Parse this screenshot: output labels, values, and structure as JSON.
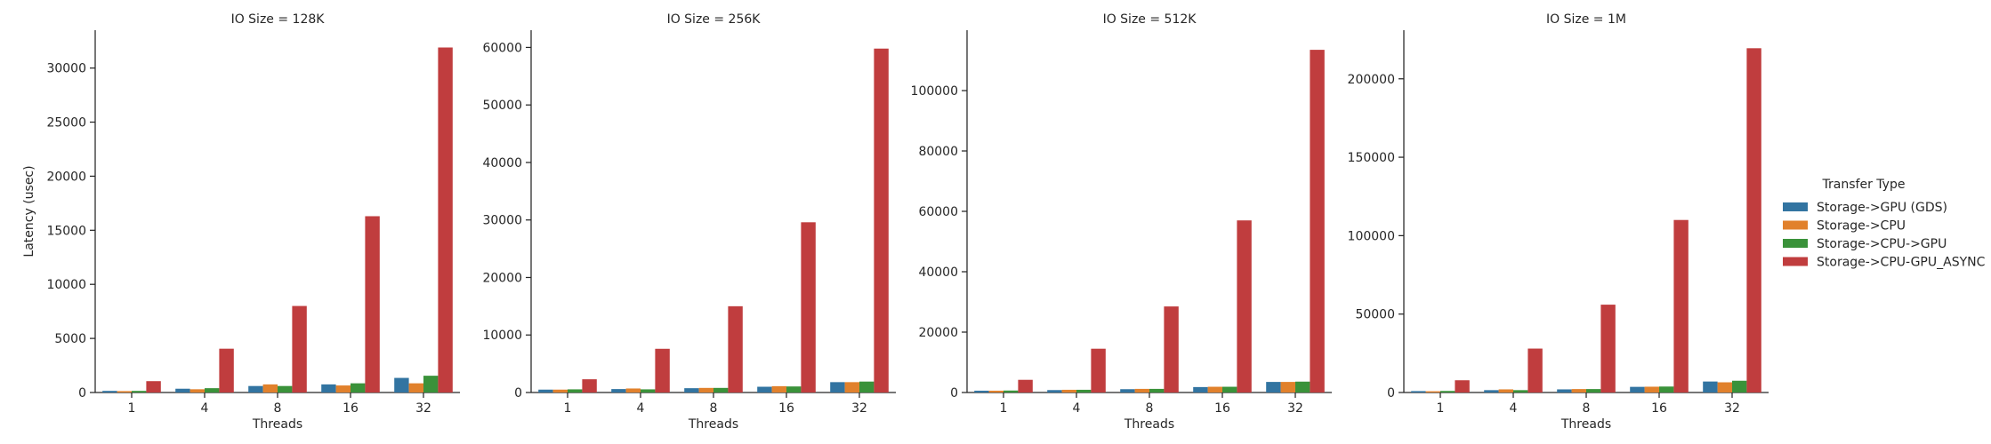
{
  "chart_data": {
    "type": "bar",
    "ylabel": "Latency (usec)",
    "xlabel": "Threads",
    "categories": [
      "1",
      "4",
      "8",
      "16",
      "32"
    ],
    "legend": {
      "title": "Transfer Type",
      "placement": "right",
      "colors": [
        "#3274a1",
        "#e1812c",
        "#3a923a",
        "#c03d3e"
      ]
    },
    "series_names": [
      "Storage->GPU (GDS)",
      "Storage->CPU",
      "Storage->CPU->GPU",
      "Storage->CPU-GPU_ASYNC"
    ],
    "grid": false,
    "panels": [
      {
        "title": "IO Size = 128K",
        "ylim": [
          0,
          33500
        ],
        "yticks": [
          0,
          5000,
          10000,
          15000,
          20000,
          25000,
          30000
        ],
        "series": [
          {
            "name": "Storage->GPU (GDS)",
            "values": [
              150,
              350,
              600,
              750,
              1350
            ]
          },
          {
            "name": "Storage->CPU",
            "values": [
              130,
              300,
              750,
              650,
              850
            ]
          },
          {
            "name": "Storage->CPU->GPU",
            "values": [
              150,
              400,
              600,
              850,
              1550
            ]
          },
          {
            "name": "Storage->CPU-GPU_ASYNC",
            "values": [
              1050,
              4050,
              8000,
              16300,
              31900
            ]
          }
        ]
      },
      {
        "title": "IO Size = 256K",
        "ylim": [
          0,
          63000
        ],
        "yticks": [
          0,
          10000,
          20000,
          30000,
          40000,
          50000,
          60000
        ],
        "series": [
          {
            "name": "Storage->GPU (GDS)",
            "values": [
              500,
              600,
              750,
              1000,
              1800
            ]
          },
          {
            "name": "Storage->CPU",
            "values": [
              500,
              700,
              800,
              1100,
              1800
            ]
          },
          {
            "name": "Storage->CPU->GPU",
            "values": [
              550,
              550,
              800,
              1050,
              1900
            ]
          },
          {
            "name": "Storage->CPU-GPU_ASYNC",
            "values": [
              2300,
              7600,
              15000,
              29600,
              59800
            ]
          }
        ]
      },
      {
        "title": "IO Size = 512K",
        "ylim": [
          0,
          120000
        ],
        "yticks": [
          0,
          20000,
          40000,
          60000,
          80000,
          100000
        ],
        "series": [
          {
            "name": "Storage->GPU (GDS)",
            "values": [
              600,
              800,
              1100,
              1800,
              3500
            ]
          },
          {
            "name": "Storage->CPU",
            "values": [
              600,
              900,
              1200,
              1900,
              3500
            ]
          },
          {
            "name": "Storage->CPU->GPU",
            "values": [
              650,
              900,
              1200,
              1900,
              3600
            ]
          },
          {
            "name": "Storage->CPU-GPU_ASYNC",
            "values": [
              4200,
              14500,
              28500,
              57000,
              113500
            ]
          }
        ]
      },
      {
        "title": "IO Size = 1M",
        "ylim": [
          0,
          231000
        ],
        "yticks": [
          0,
          50000,
          100000,
          150000,
          200000
        ],
        "series": [
          {
            "name": "Storage->GPU (GDS)",
            "values": [
              900,
              1500,
              2000,
              3600,
              7000
            ]
          },
          {
            "name": "Storage->CPU",
            "values": [
              800,
              2000,
              2200,
              3700,
              6500
            ]
          },
          {
            "name": "Storage->CPU->GPU",
            "values": [
              1000,
              1500,
              2200,
              3800,
              7500
            ]
          },
          {
            "name": "Storage->CPU-GPU_ASYNC",
            "values": [
              7800,
              28000,
              56000,
              110000,
              219500
            ]
          }
        ]
      }
    ]
  }
}
